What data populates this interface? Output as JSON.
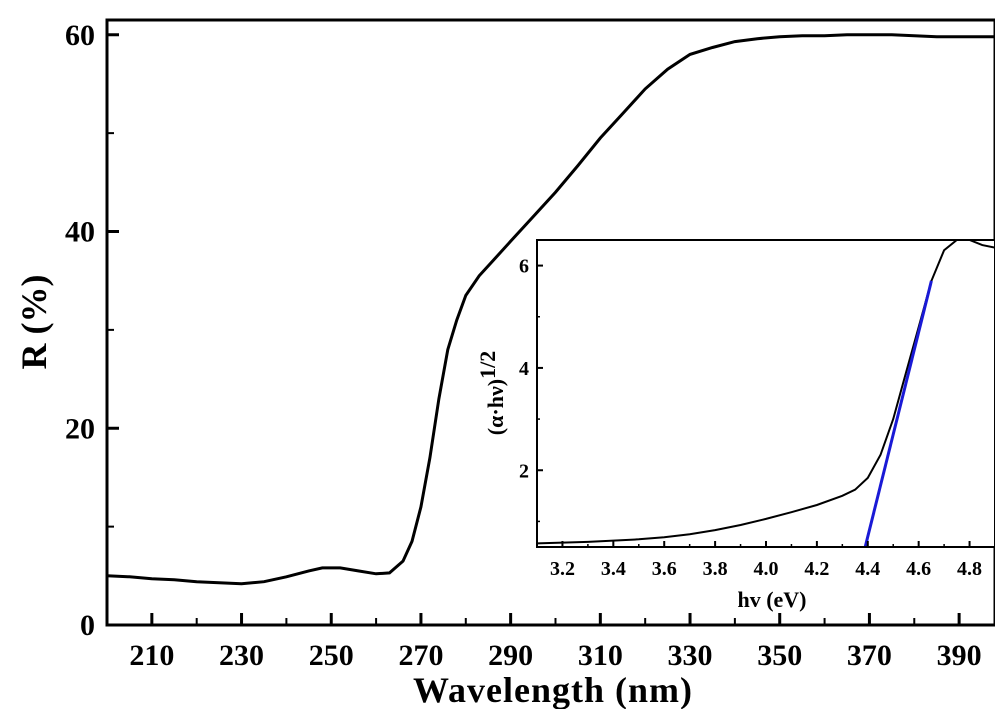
{
  "chart_data": [
    {
      "type": "line",
      "xlabel": "Wavelength (nm)",
      "ylabel": "R (%)",
      "xlim": [
        200,
        398
      ],
      "ylim": [
        0,
        61.5
      ],
      "xticks": [
        210,
        230,
        250,
        270,
        290,
        310,
        330,
        350,
        370,
        390
      ],
      "yticks": [
        0,
        20,
        40,
        60
      ],
      "grid": false,
      "line_color": "#000000",
      "series": [
        {
          "x": [
            200,
            205,
            210,
            215,
            220,
            225,
            230,
            235,
            240,
            245,
            248,
            252,
            256,
            260,
            263,
            266,
            268,
            270,
            272,
            274,
            276,
            278,
            280,
            283,
            286,
            290,
            295,
            300,
            305,
            310,
            315,
            320,
            325,
            330,
            335,
            340,
            345,
            350,
            355,
            360,
            365,
            370,
            375,
            380,
            385,
            390,
            395,
            398
          ],
          "values": [
            5.0,
            4.9,
            4.7,
            4.6,
            4.4,
            4.3,
            4.2,
            4.4,
            4.9,
            5.5,
            5.8,
            5.8,
            5.5,
            5.2,
            5.3,
            6.5,
            8.5,
            12.0,
            17.0,
            23.0,
            28.0,
            31.0,
            33.5,
            35.5,
            37.0,
            39.0,
            41.5,
            44.0,
            46.7,
            49.5,
            52.0,
            54.5,
            56.5,
            58.0,
            58.7,
            59.3,
            59.6,
            59.8,
            59.9,
            59.9,
            60.0,
            60.0,
            60.0,
            59.9,
            59.8,
            59.8,
            59.8,
            59.8
          ]
        }
      ]
    },
    {
      "type": "line",
      "xlabel": "hv (eV)",
      "ylabel": "(α·hν)",
      "ylabel_sup": "1/2",
      "xlim": [
        3.1,
        4.9
      ],
      "ylim": [
        0.5,
        6.5
      ],
      "xticks": [
        3.2,
        3.4,
        3.6,
        3.8,
        4.0,
        4.2,
        4.4,
        4.6,
        4.8
      ],
      "yticks": [
        2,
        4,
        6
      ],
      "grid": false,
      "series": [
        {
          "color": "#000000",
          "x": [
            3.1,
            3.3,
            3.5,
            3.6,
            3.7,
            3.8,
            3.9,
            4.0,
            4.1,
            4.2,
            4.3,
            4.35,
            4.4,
            4.45,
            4.5,
            4.55,
            4.6,
            4.65,
            4.7,
            4.75,
            4.8,
            4.85,
            4.9
          ],
          "values": [
            0.57,
            0.6,
            0.65,
            0.69,
            0.75,
            0.83,
            0.93,
            1.05,
            1.18,
            1.32,
            1.5,
            1.62,
            1.85,
            2.3,
            3.0,
            3.9,
            4.8,
            5.7,
            6.3,
            6.5,
            6.5,
            6.4,
            6.35
          ]
        },
        {
          "color": "#1a1ad6",
          "x": [
            4.39,
            4.65
          ],
          "values": [
            0.5,
            5.7
          ]
        }
      ]
    }
  ]
}
